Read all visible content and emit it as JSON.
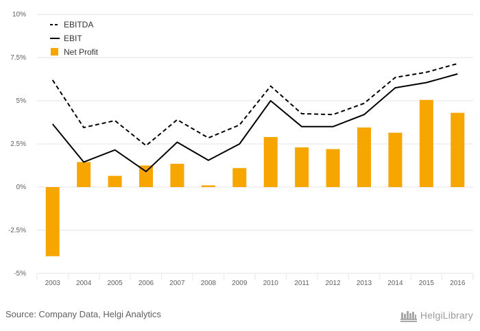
{
  "chart_data": {
    "type": "bar",
    "categories": [
      "2003",
      "2004",
      "2005",
      "2006",
      "2007",
      "2008",
      "2009",
      "2010",
      "2011",
      "2012",
      "2013",
      "2014",
      "2015",
      "2016"
    ],
    "y_ticks": [
      "-5%",
      "-2.5%",
      "0%",
      "2.5%",
      "5%",
      "7.5%",
      "10%"
    ],
    "ylim": [
      -5,
      10
    ],
    "grid": true,
    "legend_position": "top-left",
    "series": [
      {
        "name": "EBITDA",
        "type": "line",
        "style": "dashed",
        "color": "#000000",
        "values": [
          6.2,
          3.45,
          3.85,
          2.4,
          3.9,
          2.85,
          3.6,
          5.85,
          4.25,
          4.2,
          4.85,
          6.35,
          6.65,
          7.15
        ]
      },
      {
        "name": "EBIT",
        "type": "line",
        "style": "solid",
        "color": "#000000",
        "values": [
          3.65,
          1.45,
          2.15,
          0.9,
          2.6,
          1.55,
          2.5,
          5.0,
          3.5,
          3.5,
          4.2,
          5.75,
          6.05,
          6.55
        ]
      },
      {
        "name": "Net Profit",
        "type": "bar",
        "color": "#F7A600",
        "values": [
          -4.0,
          1.45,
          0.65,
          1.25,
          1.35,
          0.1,
          1.1,
          2.9,
          2.3,
          2.2,
          3.45,
          3.15,
          5.05,
          4.3
        ]
      }
    ]
  },
  "footer": {
    "source": "Source: Company Data, Helgi Analytics",
    "brand": "HelgiLibrary"
  },
  "colors": {
    "grid": "#e6e6e6",
    "axis_text": "#606060",
    "bar": "#F7A600"
  }
}
